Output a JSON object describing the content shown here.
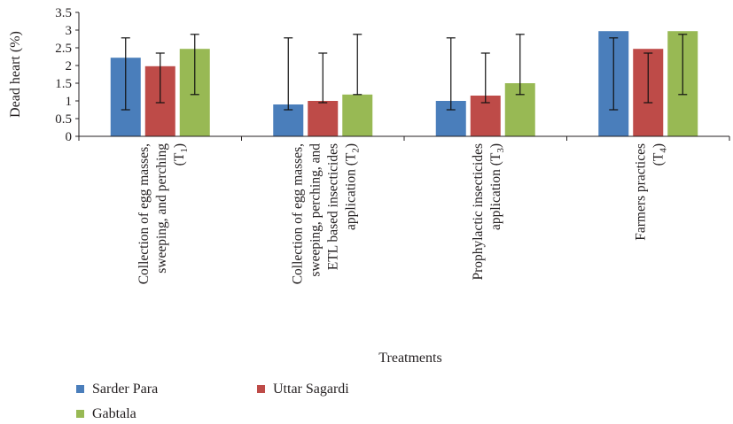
{
  "chart_data": {
    "type": "bar",
    "title": "",
    "xlabel": "Treatments",
    "ylabel": "Dead heart (%)",
    "ylim": [
      0,
      3.5
    ],
    "yticks": [
      "0",
      "0.5",
      "1",
      "1.5",
      "2",
      "2.5",
      "3",
      "3.5"
    ],
    "grid": false,
    "legend_position": "bottom-left",
    "categories": [
      {
        "lines": [
          "Collection of egg masses,",
          "sweeping, and perching",
          "(T1)"
        ],
        "subscript": "1"
      },
      {
        "lines": [
          "Collection of egg masses,",
          "sweeping, perching, and",
          "ETL based insecticides",
          "application (T2)"
        ],
        "subscript": "2"
      },
      {
        "lines": [
          "Prophylactic insecticides",
          "application (T3)"
        ],
        "subscript": "3"
      },
      {
        "lines": [
          "Farmers practices",
          "(T4)"
        ],
        "subscript": "4"
      }
    ],
    "series": [
      {
        "name": "Sarder Para",
        "color": "#4a7ebb",
        "values": [
          2.22,
          0.9,
          1.0,
          2.97
        ],
        "err_low": [
          0.75,
          0.75,
          0.75,
          0.75
        ],
        "err_high": [
          2.78,
          2.78,
          2.78,
          2.78
        ]
      },
      {
        "name": "Uttar Sagardi",
        "color": "#be4b48",
        "values": [
          1.98,
          1.0,
          1.15,
          2.47
        ],
        "err_low": [
          0.95,
          0.95,
          0.95,
          0.95
        ],
        "err_high": [
          2.35,
          2.35,
          2.35,
          2.35
        ]
      },
      {
        "name": "Gabtala",
        "color": "#98b954",
        "values": [
          2.47,
          1.18,
          1.5,
          2.97
        ],
        "err_low": [
          1.18,
          1.18,
          1.18,
          1.18
        ],
        "err_high": [
          2.88,
          2.88,
          2.88,
          2.88
        ]
      }
    ]
  }
}
